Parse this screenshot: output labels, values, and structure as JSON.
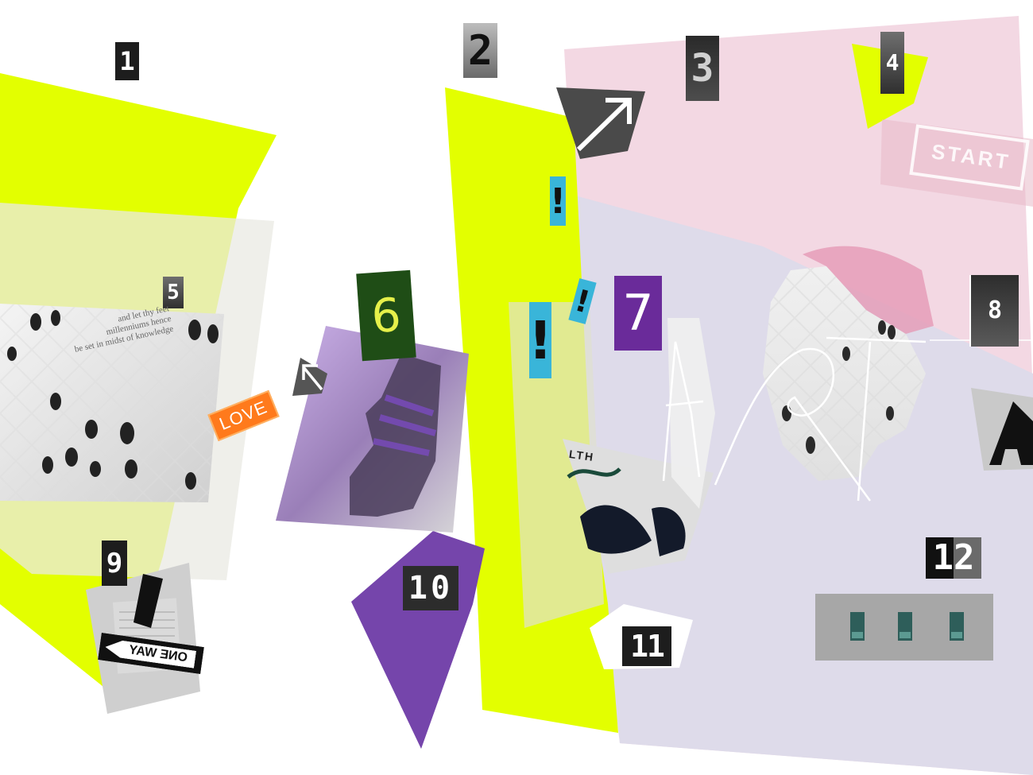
{
  "tiles": {
    "t1": "1",
    "t2": "2",
    "t3": "3",
    "t4": "4",
    "t5": "5",
    "t6": "6",
    "t7": "7",
    "t8": "8",
    "t9": "9",
    "t10": "10",
    "t11": "11",
    "t12": "12"
  },
  "labels": {
    "love": "LOVE",
    "one_way": "ONE WAY",
    "start": "START",
    "bang": "!",
    "quote_line1": "and let thy feet",
    "quote_line2": "millenniums hence",
    "quote_line3": "be set in midst of knowledge",
    "graffiti_top": "LTH",
    "art": "ART"
  },
  "colors": {
    "lime": "#e3ff00",
    "pink": "#f2d9e2",
    "lavender": "#dcd9ea",
    "purple": "#7545ab",
    "accent_blue": "#39b5d9",
    "orange": "#ff7a1c"
  },
  "icons": [
    "arrow-up-right-icon",
    "arrow-up-left-icon",
    "exclamation-icon"
  ]
}
